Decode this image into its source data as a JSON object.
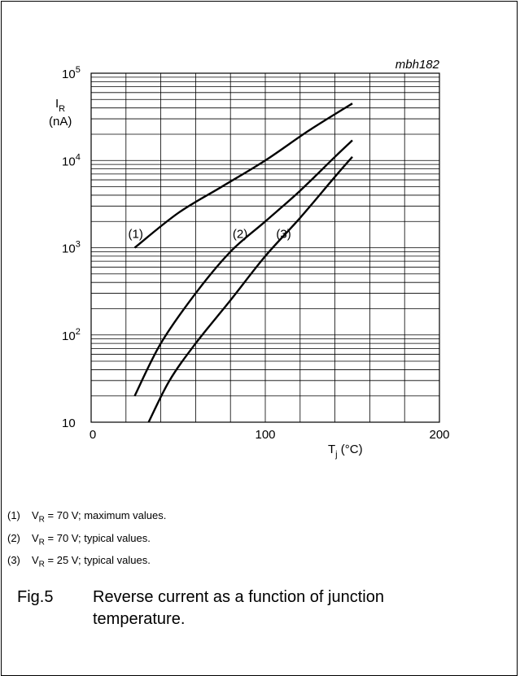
{
  "figure_code": "mbh182",
  "chart_data": {
    "type": "line",
    "y_scale": "log",
    "ylim": [
      10,
      100000
    ],
    "xlim": [
      0,
      200
    ],
    "grid": true,
    "ylabel": {
      "main": "I",
      "sub": "R",
      "unit": "(nA)"
    },
    "xlabel": {
      "main": "T",
      "sub": "j",
      "unit": " (°C)"
    },
    "x_ticks": [
      "0",
      "100",
      "200"
    ],
    "y_ticks": [
      {
        "value": 10,
        "base": "10",
        "exp": ""
      },
      {
        "value": 100,
        "base": "10",
        "exp": "2"
      },
      {
        "value": 1000,
        "base": "10",
        "exp": "3"
      },
      {
        "value": 10000,
        "base": "10",
        "exp": "4"
      },
      {
        "value": 100000,
        "base": "10",
        "exp": "5"
      }
    ],
    "series": [
      {
        "name": "(1)",
        "label_at": [
          25,
          1300
        ],
        "x": [
          25,
          50,
          75,
          100,
          125,
          150
        ],
        "y": [
          1000,
          2500,
          5000,
          10000,
          22000,
          45000
        ]
      },
      {
        "name": "(2)",
        "label_at": [
          85,
          1300
        ],
        "x": [
          25,
          40,
          60,
          80,
          100,
          120,
          140,
          150
        ],
        "y": [
          20,
          80,
          300,
          900,
          2000,
          4500,
          11000,
          17000
        ]
      },
      {
        "name": "(3)",
        "label_at": [
          110,
          1300
        ],
        "x": [
          33,
          45,
          60,
          80,
          100,
          120,
          140,
          150
        ],
        "y": [
          10,
          30,
          80,
          250,
          800,
          2200,
          6500,
          11000
        ]
      }
    ]
  },
  "notes": [
    {
      "num": "(1)",
      "v": "V",
      "sub": "R",
      "text": " = 70 V; maximum values."
    },
    {
      "num": "(2)",
      "v": "V",
      "sub": "R",
      "text": " = 70 V; typical values."
    },
    {
      "num": "(3)",
      "v": "V",
      "sub": "R",
      "text": " = 25 V; typical values."
    }
  ],
  "caption": {
    "fig": "Fig.5",
    "text": "Reverse current as a function of junction temperature."
  }
}
